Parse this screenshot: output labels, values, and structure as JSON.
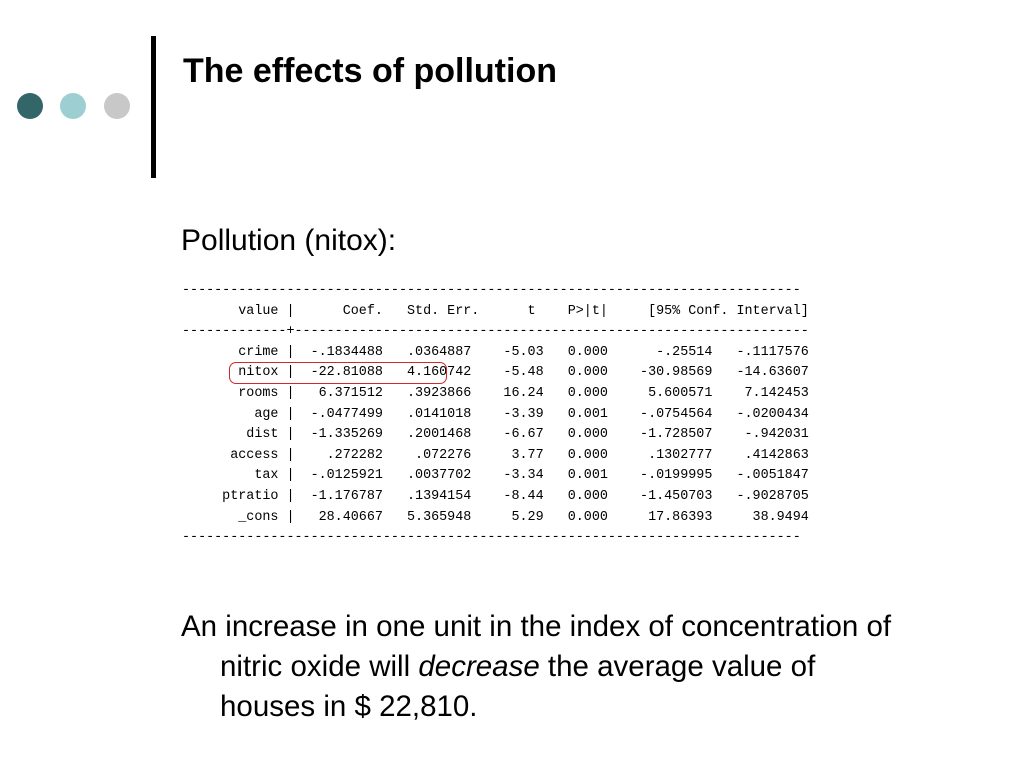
{
  "slide": {
    "title": "The effects of pollution",
    "subtitle": "Pollution (nitox):",
    "colors": {
      "dot_dark": "#336669",
      "dot_light": "#9dcfd2",
      "dot_gray": "#c8c8c8",
      "highlight": "#d12a2a"
    },
    "highlighted_row": "nitox"
  },
  "stata_output": {
    "lines": [
      "-----------------------------------------------------------------------------",
      "       value |      Coef.   Std. Err.      t    P>|t|     [95% Conf. Interval]",
      "-------------+----------------------------------------------------------------",
      "       crime |  -.1834488   .0364887    -5.03   0.000      -.25514   -.1117576",
      "       nitox |  -22.81088   4.160742    -5.48   0.000    -30.98569   -14.63607",
      "       rooms |   6.371512   .3923866    16.24   0.000     5.600571    7.142453",
      "         age |  -.0477499   .0141018    -3.39   0.001    -.0754564   -.0200434",
      "        dist |  -1.335269   .2001468    -6.67   0.000    -1.728507    -.942031",
      "      access |    .272282    .072276     3.77   0.000     .1302777    .4142863",
      "         tax |  -.0125921   .0037702    -3.34   0.001    -.0199995   -.0051847",
      "     ptratio |  -1.176787   .1394154    -8.44   0.000    -1.450703   -.9028705",
      "       _cons |   28.40667   5.365948     5.29   0.000     17.86393     38.9494",
      "-----------------------------------------------------------------------------"
    ]
  },
  "conclusion": {
    "line1": "An increase in one unit in the index of concentration of",
    "line2_pre": "nitric oxide will ",
    "line2_em": "decrease",
    "line2_post": " the average value of",
    "line3": "houses in $ 22,810."
  }
}
